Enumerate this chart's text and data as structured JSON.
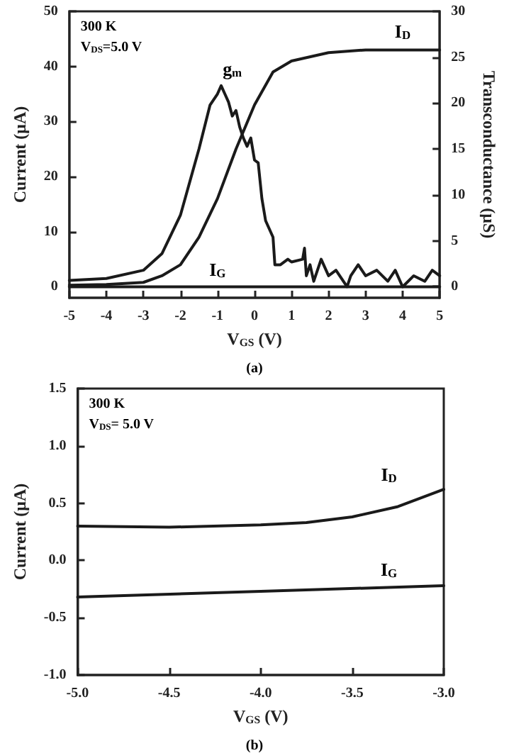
{
  "chart_data": [
    {
      "type": "line",
      "subtitle": "(a)",
      "xlabel": "V$_{GS}$ (V)",
      "ylabel": "Current (μA)",
      "y2label": "Transconductance (μS)",
      "annotations": [
        "300 K",
        "V$_{DS}$=5.0 V"
      ],
      "series": [
        {
          "name": "I$_{D}$",
          "color": "#1a1a1a",
          "x": [
            -5,
            -4,
            -3,
            -2.5,
            -2,
            -1.5,
            -1,
            -0.5,
            0,
            0.5,
            1,
            2,
            3,
            5
          ],
          "values": [
            0.3,
            0.4,
            0.8,
            2,
            4,
            9,
            16,
            25,
            33,
            39,
            41,
            42.5,
            43,
            43
          ]
        },
        {
          "name": "g$_{m}$",
          "color": "#1a1a1a",
          "axis": "y2",
          "x": [
            -5,
            -4,
            -3,
            -2.5,
            -2,
            -1.5,
            -1.2,
            -1,
            -0.9,
            -0.8,
            -0.7,
            -0.6,
            -0.5,
            -0.4,
            -0.3,
            -0.2,
            -0.1,
            0,
            0.1,
            0.2,
            0.3,
            0.5,
            0.55,
            0.7,
            0.9,
            1,
            1.3,
            1.35,
            1.4,
            1.5,
            1.6,
            1.8,
            2,
            2.2,
            2.5,
            2.6,
            2.8,
            3,
            3.3,
            3.6,
            3.8,
            4,
            4.3,
            4.6,
            4.8,
            5
          ],
          "values": [
            0.7,
            0.9,
            1.8,
            3.6,
            7.8,
            15,
            19.8,
            21,
            21.9,
            21,
            20.1,
            18.6,
            19.2,
            17.4,
            16.2,
            15.3,
            16.2,
            13.8,
            13.5,
            9.6,
            7.2,
            5.4,
            2.4,
            2.4,
            3,
            2.7,
            3,
            4.2,
            1.2,
            2.4,
            0.6,
            3,
            1.2,
            1.8,
            0,
            1.2,
            2.4,
            1.2,
            1.8,
            0.6,
            1.8,
            0,
            1.2,
            0.6,
            1.8,
            1.2
          ]
        },
        {
          "name": "I$_{G}$",
          "color": "#1a1a1a",
          "x": [
            -5,
            5
          ],
          "values": [
            0,
            0
          ]
        }
      ],
      "xlim": [
        -5,
        5
      ],
      "xticks": [
        -5,
        -4,
        -3,
        -2,
        -1,
        0,
        1,
        2,
        3,
        4,
        5
      ],
      "ylim": [
        -2,
        50
      ],
      "yticks": [
        0,
        10,
        20,
        30,
        40,
        50
      ],
      "y2lim": [
        -1.2,
        30
      ],
      "y2ticks": [
        0,
        5,
        10,
        15,
        20,
        25,
        30
      ],
      "grid": false,
      "legend": false,
      "marker": "none",
      "line_style": "solid"
    },
    {
      "type": "line",
      "subtitle": "(b)",
      "xlabel": "V$_{GS}$ (V)",
      "ylabel": "Current (μA)",
      "annotations": [
        "300 K",
        "V$_{DS}$= 5.0 V"
      ],
      "series": [
        {
          "name": "I$_{D}$",
          "color": "#1a1a1a",
          "x": [
            -5,
            -4.5,
            -4,
            -3.75,
            -3.5,
            -3.25,
            -3
          ],
          "values": [
            0.3,
            0.29,
            0.31,
            0.33,
            0.38,
            0.47,
            0.62
          ]
        },
        {
          "name": "I$_{G}$",
          "color": "#1a1a1a",
          "x": [
            -5,
            -4,
            -3
          ],
          "values": [
            -0.32,
            -0.27,
            -0.22
          ]
        }
      ],
      "xlim": [
        -5,
        -3
      ],
      "xticks": [
        {
          "value": -5,
          "label": "-5.0"
        },
        -4.5,
        {
          "value": -4,
          "label": "-4.0"
        },
        -3.5,
        {
          "value": -3,
          "label": "-3.0"
        }
      ],
      "ylim": [
        -1,
        1.5
      ],
      "yticks": [
        {
          "value": -1,
          "label": "-1.0"
        },
        -0.5,
        {
          "value": 0,
          "label": "0.0"
        },
        0.5,
        {
          "value": 1,
          "label": "1.0"
        },
        1.5
      ],
      "grid": false,
      "legend": false,
      "marker": "none",
      "line_style": "solid"
    }
  ]
}
